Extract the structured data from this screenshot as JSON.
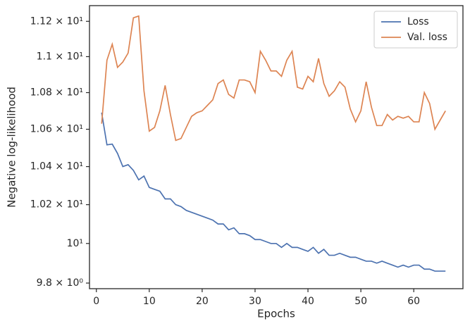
{
  "chart_data": {
    "type": "line",
    "xlabel": "Epochs",
    "ylabel": "Negative log-likelihood",
    "x": [
      1,
      2,
      3,
      4,
      5,
      6,
      7,
      8,
      9,
      10,
      11,
      12,
      13,
      14,
      15,
      16,
      17,
      18,
      19,
      20,
      21,
      22,
      23,
      24,
      25,
      26,
      27,
      28,
      29,
      30,
      31,
      32,
      33,
      34,
      35,
      36,
      37,
      38,
      39,
      40,
      41,
      42,
      43,
      44,
      45,
      46,
      47,
      48,
      49,
      50,
      51,
      52,
      53,
      54,
      55,
      56,
      57,
      58,
      59,
      60,
      61,
      62,
      63,
      64,
      65,
      66
    ],
    "series": [
      {
        "name": "Loss",
        "color": "#4c72b0",
        "values": [
          10.69,
          10.516,
          10.52,
          10.47,
          10.4,
          10.41,
          10.38,
          10.33,
          10.35,
          10.29,
          10.28,
          10.27,
          10.23,
          10.23,
          10.2,
          10.19,
          10.17,
          10.16,
          10.15,
          10.14,
          10.13,
          10.12,
          10.1,
          10.1,
          10.07,
          10.08,
          10.05,
          10.05,
          10.04,
          10.02,
          10.02,
          10.01,
          10.0,
          10.0,
          9.98,
          10.0,
          9.98,
          9.98,
          9.97,
          9.96,
          9.98,
          9.95,
          9.97,
          9.94,
          9.94,
          9.95,
          9.94,
          9.93,
          9.93,
          9.92,
          9.91,
          9.91,
          9.9,
          9.91,
          9.9,
          9.89,
          9.88,
          9.89,
          9.88,
          9.89,
          9.89,
          9.87,
          9.87,
          9.86,
          9.86,
          9.86
        ]
      },
      {
        "name": "Val. loss",
        "color": "#dd8452",
        "values": [
          10.63,
          10.98,
          11.07,
          10.94,
          10.97,
          11.02,
          11.22,
          11.23,
          10.81,
          10.59,
          10.61,
          10.7,
          10.84,
          10.68,
          10.54,
          10.55,
          10.61,
          10.67,
          10.69,
          10.7,
          10.73,
          10.76,
          10.85,
          10.87,
          10.79,
          10.77,
          10.87,
          10.87,
          10.86,
          10.8,
          11.03,
          10.98,
          10.92,
          10.92,
          10.89,
          10.98,
          11.03,
          10.83,
          10.82,
          10.89,
          10.86,
          10.99,
          10.85,
          10.78,
          10.81,
          10.86,
          10.83,
          10.71,
          10.64,
          10.7,
          10.86,
          10.72,
          10.62,
          10.62,
          10.68,
          10.65,
          10.67,
          10.66,
          10.67,
          10.64,
          10.64,
          10.8,
          10.74,
          10.6,
          10.65,
          10.7
        ]
      }
    ],
    "xlim": [
      -1.3,
      69.3
    ],
    "xticks": [
      0,
      10,
      20,
      30,
      40,
      50,
      60
    ],
    "ylim": [
      9.772,
      11.29
    ],
    "log_y": true,
    "yticks": [
      {
        "value": 9.8,
        "label": "9.8 × 10⁰"
      },
      {
        "value": 10,
        "label": "10¹"
      },
      {
        "value": 10.2,
        "label": "1.02 × 10¹"
      },
      {
        "value": 10.4,
        "label": "1.04 × 10¹"
      },
      {
        "value": 10.6,
        "label": "1.06 × 10¹"
      },
      {
        "value": 10.8,
        "label": "1.08 × 10¹"
      },
      {
        "value": 11,
        "label": "1.1 × 10¹"
      },
      {
        "value": 11.2,
        "label": "1.12 × 10¹"
      }
    ],
    "legend": "upper right"
  }
}
